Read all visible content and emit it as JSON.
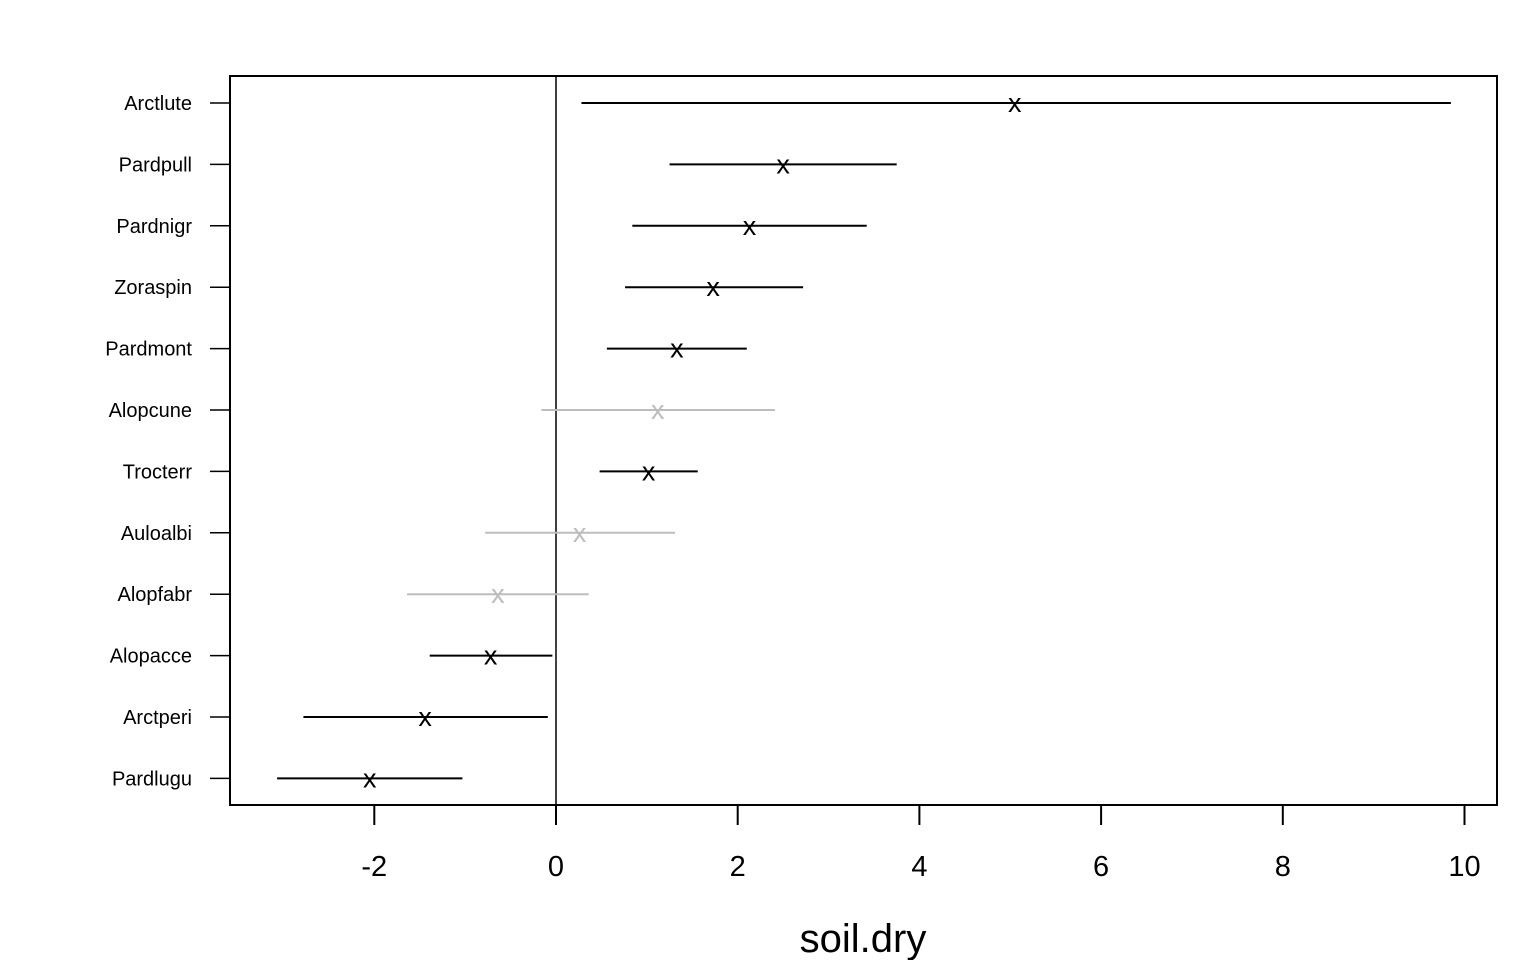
{
  "chart_data": {
    "type": "scatter",
    "subtype": "coefficient-interval-plot",
    "title": "",
    "xlabel": "soil.dry",
    "ylabel": "",
    "xlim": [
      -3.6,
      10.35
    ],
    "x_ticks": [
      -2,
      0,
      2,
      4,
      6,
      8,
      10
    ],
    "x_tick_labels": [
      "-2",
      "0",
      "2",
      "4",
      "6",
      "8",
      "10"
    ],
    "reference_line_x": 0,
    "grid": false,
    "legend": "none",
    "marker_symbol": "x",
    "colors": {
      "significant": "#000000",
      "not_significant": "#bdbdbd"
    },
    "series": [
      {
        "label": "Arctlute",
        "estimate": 5.05,
        "lower": 0.28,
        "upper": 9.85,
        "significant": true
      },
      {
        "label": "Pardpull",
        "estimate": 2.5,
        "lower": 1.25,
        "upper": 3.75,
        "significant": true
      },
      {
        "label": "Pardnigr",
        "estimate": 2.13,
        "lower": 0.84,
        "upper": 3.42,
        "significant": true
      },
      {
        "label": "Zoraspin",
        "estimate": 1.73,
        "lower": 0.76,
        "upper": 2.72,
        "significant": true
      },
      {
        "label": "Pardmont",
        "estimate": 1.33,
        "lower": 0.56,
        "upper": 2.1,
        "significant": true
      },
      {
        "label": "Alopcune",
        "estimate": 1.12,
        "lower": -0.16,
        "upper": 2.41,
        "significant": false
      },
      {
        "label": "Trocterr",
        "estimate": 1.02,
        "lower": 0.48,
        "upper": 1.56,
        "significant": true
      },
      {
        "label": "Auloalbi",
        "estimate": 0.26,
        "lower": -0.78,
        "upper": 1.31,
        "significant": false
      },
      {
        "label": "Alopfabr",
        "estimate": -0.64,
        "lower": -1.64,
        "upper": 0.36,
        "significant": false
      },
      {
        "label": "Alopacce",
        "estimate": -0.72,
        "lower": -1.39,
        "upper": -0.04,
        "significant": true
      },
      {
        "label": "Arctperi",
        "estimate": -1.44,
        "lower": -2.78,
        "upper": -0.09,
        "significant": true
      },
      {
        "label": "Pardlugu",
        "estimate": -2.05,
        "lower": -3.07,
        "upper": -1.03,
        "significant": true
      }
    ]
  }
}
